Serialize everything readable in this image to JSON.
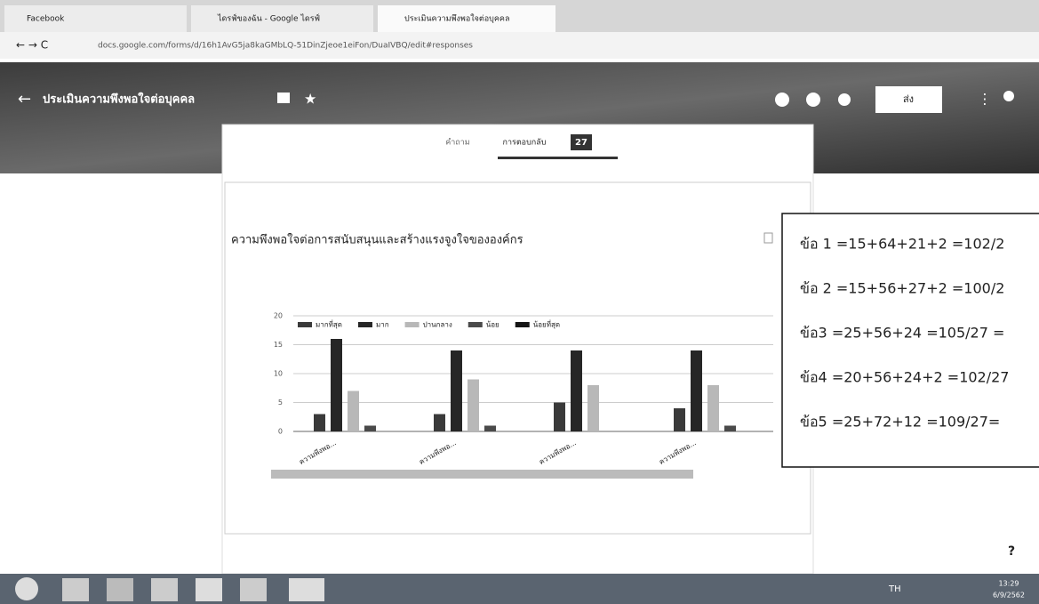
{
  "browser": {
    "tabs": [
      "Facebook",
      "ไดรฟ์ของฉัน - Google ไดรฟ์",
      "ประเมินความพึงพอใจต่อบุคคล"
    ],
    "url": "docs.google.com/forms/d/16h1AvG5ja8kaGMbLQ-51DinZjeoe1eiFon/DuaIVBQ/edit#responses"
  },
  "form": {
    "title": "ประเมินความพึงพอใจต่อบุคคล",
    "tabs": [
      "คำถาม",
      "การตอบกลับ"
    ],
    "response_count": 27,
    "send": "ส่ง"
  },
  "chart_data": {
    "type": "bar",
    "title": "ความพึงพอใจต่อการสนับสนุนและสร้างแรงจูงใจขององค์กร",
    "categories": [
      "ความพึงพอ...",
      "ความพึงพอ...",
      "ความพึงพอ...",
      "ความพึงพอ..."
    ],
    "series": [
      {
        "name": "มากที่สุด",
        "color": "#3a3a3a",
        "values": [
          3,
          3,
          5,
          4
        ]
      },
      {
        "name": "มาก",
        "color": "#262626",
        "values": [
          16,
          14,
          14,
          14
        ]
      },
      {
        "name": "ปานกลาง",
        "color": "#b8b8b8",
        "values": [
          7,
          9,
          8,
          8
        ]
      },
      {
        "name": "น้อย",
        "color": "#4a4a4a",
        "values": [
          1,
          1,
          0,
          1
        ]
      },
      {
        "name": "น้อยที่สุด",
        "color": "#151515",
        "values": [
          0,
          0,
          0,
          0
        ]
      }
    ],
    "ylim": [
      0,
      20
    ],
    "yticks": [
      0,
      5,
      10,
      15,
      20
    ],
    "grid": true,
    "legend": "top"
  },
  "notes": [
    "ข้อ 1 =15+64+21+2 =102/2",
    "ข้อ 2 =15+56+27+2  =100/2",
    "ข้อ3 =25+56+24  =105/27 =",
    "ข้อ4 =20+56+24+2 =102/27",
    "ข้อ5 =25+72+12  =109/27="
  ],
  "taskbar": {
    "language": "TH",
    "time": "13:29",
    "date": "6/9/2562"
  }
}
